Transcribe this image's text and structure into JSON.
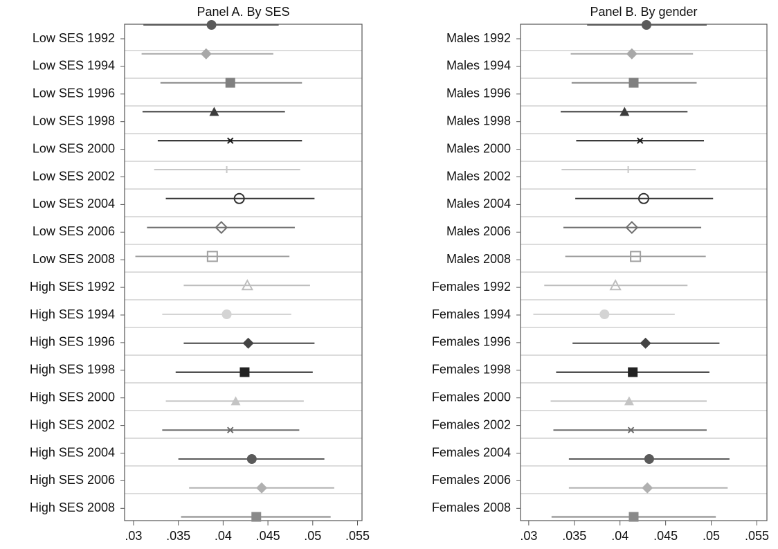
{
  "chart_data": [
    {
      "type": "coefplot",
      "title": "Panel A. By SES",
      "categories": [
        "Low SES 1992",
        "Low SES 1994",
        "Low SES 1996",
        "Low SES 1998",
        "Low SES 2000",
        "Low SES 2002",
        "Low SES 2004",
        "Low SES 2006",
        "Low SES 2008",
        "High SES 1992",
        "High SES 1994",
        "High SES 1996",
        "High SES 1998",
        "High SES 2000",
        "High SES 2002",
        "High SES 2004",
        "High SES 2006",
        "High SES 2008"
      ],
      "values": [
        0.0387,
        0.0381,
        0.0408,
        0.039,
        0.0408,
        0.0404,
        0.0418,
        0.0398,
        0.0388,
        0.0427,
        0.0404,
        0.0428,
        0.0424,
        0.0414,
        0.0408,
        0.0432,
        0.0443,
        0.0437
      ],
      "lower": [
        0.0311,
        0.0309,
        0.033,
        0.031,
        0.0327,
        0.0323,
        0.0336,
        0.0315,
        0.0302,
        0.0356,
        0.0332,
        0.0356,
        0.0347,
        0.0336,
        0.0332,
        0.035,
        0.0362,
        0.0353
      ],
      "upper": [
        0.0462,
        0.0456,
        0.0488,
        0.0469,
        0.0488,
        0.0486,
        0.0502,
        0.048,
        0.0474,
        0.0497,
        0.0476,
        0.0502,
        0.05,
        0.049,
        0.0485,
        0.0513,
        0.0524,
        0.052
      ],
      "markers": [
        "circle",
        "diamond",
        "square",
        "triangle",
        "x",
        "plus",
        "circle-hollow",
        "diamond-hollow",
        "square-hollow",
        "triangle-hollow",
        "circle",
        "diamond",
        "square",
        "triangle",
        "x",
        "circle",
        "diamond",
        "square"
      ],
      "colors": [
        "#5a5a5a",
        "#a8a8a8",
        "#808080",
        "#3c3c3c",
        "#1a1a1a",
        "#c8c8c8",
        "#333333",
        "#707070",
        "#a0a0a0",
        "#bdbdbd",
        "#d4d4d4",
        "#444444",
        "#222222",
        "#c4c4c4",
        "#6a6a6a",
        "#5a5a5a",
        "#b0b0b0",
        "#8a8a8a"
      ],
      "xlim": [
        0.029,
        0.0555
      ],
      "xticks": [
        {
          "value": 0.03,
          "label": ".03"
        },
        {
          "value": 0.035,
          "label": ".035"
        },
        {
          "value": 0.04,
          "label": ".04"
        },
        {
          "value": 0.045,
          "label": ".045"
        },
        {
          "value": 0.05,
          "label": ".05"
        },
        {
          "value": 0.055,
          "label": ".055"
        }
      ]
    },
    {
      "type": "coefplot",
      "title": "Panel B. By gender",
      "categories": [
        "Males 1992",
        "Males 1994",
        "Males 1996",
        "Males 1998",
        "Males 2000",
        "Males 2002",
        "Males 2004",
        "Males 2006",
        "Males 2008",
        "Females 1992",
        "Females 1994",
        "Females 1996",
        "Females 1998",
        "Females 2000",
        "Females 2002",
        "Females 2004",
        "Females 2006",
        "Females 2008"
      ],
      "values": [
        0.0429,
        0.0413,
        0.0415,
        0.0405,
        0.0422,
        0.0409,
        0.0426,
        0.0413,
        0.0417,
        0.0395,
        0.0383,
        0.0428,
        0.0414,
        0.041,
        0.0412,
        0.0432,
        0.043,
        0.0415
      ],
      "lower": [
        0.0364,
        0.0346,
        0.0347,
        0.0335,
        0.0352,
        0.0336,
        0.0351,
        0.0338,
        0.034,
        0.0317,
        0.0305,
        0.0348,
        0.033,
        0.0324,
        0.0327,
        0.0344,
        0.0344,
        0.0325
      ],
      "upper": [
        0.0495,
        0.048,
        0.0484,
        0.0474,
        0.0492,
        0.0483,
        0.0502,
        0.0489,
        0.0494,
        0.0474,
        0.046,
        0.0509,
        0.0498,
        0.0495,
        0.0495,
        0.052,
        0.0518,
        0.0505
      ],
      "markers": [
        "circle",
        "diamond",
        "square",
        "triangle",
        "x",
        "plus",
        "circle-hollow",
        "diamond-hollow",
        "square-hollow",
        "triangle-hollow",
        "circle",
        "diamond",
        "square",
        "triangle",
        "x",
        "circle",
        "diamond",
        "square"
      ],
      "colors": [
        "#5a5a5a",
        "#a8a8a8",
        "#808080",
        "#3c3c3c",
        "#1a1a1a",
        "#c8c8c8",
        "#333333",
        "#707070",
        "#a0a0a0",
        "#bdbdbd",
        "#d4d4d4",
        "#444444",
        "#222222",
        "#c4c4c4",
        "#6a6a6a",
        "#5a5a5a",
        "#b0b0b0",
        "#8a8a8a"
      ],
      "xlim": [
        0.0291,
        0.0561
      ],
      "xticks": [
        {
          "value": 0.03,
          "label": ".03"
        },
        {
          "value": 0.035,
          "label": ".035"
        },
        {
          "value": 0.04,
          "label": ".04"
        },
        {
          "value": 0.045,
          "label": ".045"
        },
        {
          "value": 0.05,
          "label": ".05"
        },
        {
          "value": 0.055,
          "label": ".055"
        }
      ]
    }
  ]
}
